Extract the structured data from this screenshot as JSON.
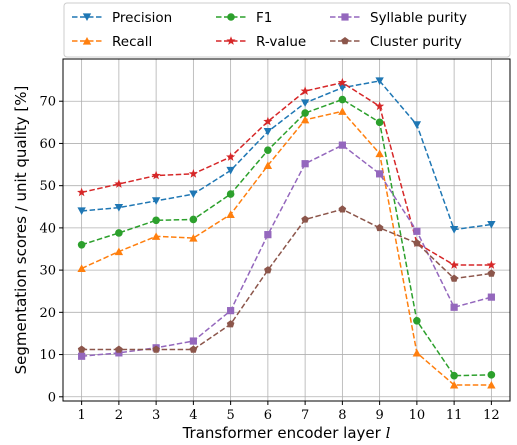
{
  "chart_data": {
    "type": "line",
    "xlabel": "Transformer encoder layer",
    "xlabel_var": "l",
    "ylabel": "Segmentation scores / unit quality [%]",
    "x": [
      1,
      2,
      3,
      4,
      5,
      6,
      7,
      8,
      9,
      10,
      11,
      12
    ],
    "xlim": [
      0.5,
      12.5
    ],
    "ylim": [
      -1,
      80
    ],
    "yticks": [
      0,
      10,
      20,
      30,
      40,
      50,
      60,
      70
    ],
    "grid": true,
    "legend_position": "top (above plot)",
    "series": [
      {
        "name": "Precision",
        "color": "#1f77b4",
        "marker": "triangle-down",
        "values": [
          44.0,
          44.8,
          46.4,
          48.0,
          53.6,
          62.8,
          69.6,
          73.2,
          74.8,
          64.4,
          39.6,
          40.8
        ]
      },
      {
        "name": "Recall",
        "color": "#ff7f0e",
        "marker": "triangle-up",
        "values": [
          30.4,
          34.4,
          38.0,
          37.6,
          43.2,
          54.8,
          65.6,
          67.6,
          57.6,
          10.4,
          2.8,
          2.8
        ]
      },
      {
        "name": "F1",
        "color": "#2ca02c",
        "marker": "circle",
        "values": [
          36.0,
          38.8,
          41.8,
          42.0,
          48.0,
          58.4,
          67.2,
          70.4,
          65.0,
          18.0,
          5.0,
          5.2
        ]
      },
      {
        "name": "R-value",
        "color": "#d62728",
        "marker": "star",
        "values": [
          48.4,
          50.4,
          52.4,
          52.8,
          56.8,
          65.2,
          72.4,
          74.4,
          68.8,
          36.4,
          31.2,
          31.2
        ]
      },
      {
        "name": "Syllable purity",
        "color": "#9467bd",
        "marker": "square",
        "values": [
          9.6,
          10.4,
          11.6,
          13.2,
          20.4,
          38.4,
          55.2,
          59.6,
          52.8,
          39.2,
          21.2,
          23.6
        ]
      },
      {
        "name": "Cluster purity",
        "color": "#8c564b",
        "marker": "pentagon",
        "values": [
          11.2,
          11.2,
          11.2,
          11.2,
          17.2,
          30.0,
          42.0,
          44.4,
          40.0,
          36.4,
          28.0,
          29.2
        ]
      }
    ]
  }
}
